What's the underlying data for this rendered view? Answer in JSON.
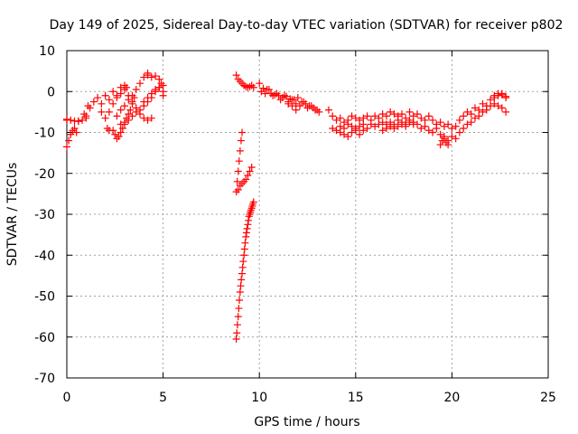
{
  "chart_data": {
    "type": "scatter",
    "title": "Day 149 of 2025, Sidereal Day-to-day VTEC variation (SDTVAR) for receiver p802",
    "xlabel": "GPS time / hours",
    "ylabel": "SDTVAR / TECUs",
    "xlim": [
      0,
      25
    ],
    "ylim": [
      -70,
      10
    ],
    "xticks": [
      0,
      5,
      10,
      15,
      20,
      25
    ],
    "xtick_labels": [
      "0",
      "5",
      "10",
      "15",
      "20",
      "25"
    ],
    "yticks": [
      10,
      0,
      -10,
      -20,
      -30,
      -40,
      -50,
      -60,
      -70
    ],
    "ytick_labels": [
      "10",
      "0",
      "-10",
      "-20",
      "-30",
      "-40",
      "-50",
      "-60",
      "-70"
    ],
    "grid": true,
    "marker": "+",
    "color": "#ff0000",
    "segments": [
      {
        "x": [
          0.0,
          0.0,
          0.1,
          0.2,
          0.3,
          0.4,
          0.5,
          0.6
        ],
        "y": [
          -7.0,
          -13.5,
          -12.0,
          -10.5,
          -9.5,
          -9.0,
          -10.0,
          -7.2
        ]
      },
      {
        "x": [
          0.0,
          0.2,
          0.4,
          0.6,
          0.8,
          1.0
        ],
        "y": [
          -6.8,
          -7.0,
          -7.2,
          -7.3,
          -7.0,
          -6.5
        ]
      },
      {
        "x": [
          0.9,
          1.0,
          1.1,
          1.2,
          1.4,
          1.6,
          1.8,
          2.0,
          2.2,
          2.4,
          2.6,
          2.8,
          3.0
        ],
        "y": [
          -5.5,
          -6.0,
          -3.5,
          -4.0,
          -2.5,
          -1.5,
          -3.0,
          -1.0,
          -2.0,
          0.0,
          -1.0,
          1.0,
          1.5
        ]
      },
      {
        "x": [
          1.8,
          2.0,
          2.2,
          2.4,
          2.6,
          2.8,
          3.0,
          3.1
        ],
        "y": [
          -5.0,
          -6.5,
          -5.0,
          -3.0,
          -1.5,
          -0.5,
          0.5,
          1.0
        ]
      },
      {
        "x": [
          2.1,
          2.2
        ],
        "y": [
          -9.0,
          -9.5
        ]
      },
      {
        "x": [
          2.4,
          2.5,
          2.6,
          2.7,
          2.8,
          2.9,
          3.0,
          3.1,
          3.2,
          3.3,
          3.4,
          3.5
        ],
        "y": [
          -9.5,
          -10.5,
          -11.5,
          -11.0,
          -10.0,
          -9.0,
          -8.0,
          -6.5,
          -5.5,
          -4.5,
          -3.0,
          -1.5
        ]
      },
      {
        "x": [
          2.6,
          2.8,
          3.0,
          3.2,
          3.4,
          3.6,
          3.8,
          4.0,
          4.2
        ],
        "y": [
          -6.0,
          -4.5,
          -3.5,
          -2.0,
          -1.0,
          0.5,
          2.0,
          3.5,
          4.5
        ]
      },
      {
        "x": [
          2.8,
          3.0,
          3.2,
          3.4,
          3.6,
          3.8,
          4.0,
          4.2,
          4.4,
          4.6,
          4.8,
          5.0
        ],
        "y": [
          -8.0,
          -7.5,
          -7.0,
          -6.0,
          -5.0,
          -4.5,
          -3.5,
          -2.5,
          -1.5,
          0.0,
          1.0,
          1.5
        ]
      },
      {
        "x": [
          3.2,
          3.4,
          3.6,
          3.8,
          4.0,
          4.2,
          4.4
        ],
        "y": [
          -1.0,
          -2.5,
          -4.0,
          -5.5,
          -6.5,
          -7.0,
          -6.5
        ]
      },
      {
        "x": [
          4.0,
          4.2,
          4.4,
          4.6,
          4.8,
          5.0,
          5.0
        ],
        "y": [
          -2.5,
          -1.5,
          -0.5,
          0.5,
          1.0,
          0.0,
          -1.0
        ]
      },
      {
        "x": [
          4.2,
          4.4,
          4.6,
          4.8,
          4.9
        ],
        "y": [
          4.0,
          3.5,
          3.8,
          3.0,
          2.0
        ]
      },
      {
        "x": [
          8.8,
          8.9,
          9.0,
          9.1,
          9.2,
          9.3,
          9.4,
          9.5,
          9.6,
          9.7
        ],
        "y": [
          4.0,
          3.0,
          2.5,
          2.0,
          1.5,
          1.2,
          1.0,
          1.2,
          1.5,
          1.0
        ]
      },
      {
        "x": [
          8.8,
          8.85,
          8.9,
          8.95,
          9.0,
          9.05,
          9.1
        ],
        "y": [
          -24.5,
          -22.0,
          -19.5,
          -17.0,
          -14.5,
          -12.0,
          -10.0
        ]
      },
      {
        "x": [
          8.9,
          9.0,
          9.1,
          9.2,
          9.3,
          9.4,
          9.5,
          9.6
        ],
        "y": [
          -24.0,
          -23.0,
          -22.5,
          -22.0,
          -21.5,
          -20.5,
          -19.5,
          -18.5
        ]
      },
      {
        "x": [
          8.8,
          8.83,
          8.86,
          8.9,
          8.93,
          8.96,
          9.0,
          9.03,
          9.06,
          9.1,
          9.13,
          9.16,
          9.2,
          9.23,
          9.26,
          9.3,
          9.33,
          9.36,
          9.4,
          9.43,
          9.46,
          9.5,
          9.53,
          9.56,
          9.6,
          9.63,
          9.66,
          9.7
        ],
        "y": [
          -60.5,
          -59.0,
          -57.0,
          -55.0,
          -53.0,
          -51.0,
          -49.0,
          -47.5,
          -46.0,
          -44.5,
          -43.0,
          -41.5,
          -40.0,
          -38.5,
          -37.0,
          -35.5,
          -34.5,
          -33.5,
          -32.5,
          -31.5,
          -30.5,
          -30.0,
          -29.5,
          -29.0,
          -28.5,
          -28.0,
          -27.5,
          -27.0
        ]
      },
      {
        "x": [
          10.0,
          10.2,
          10.4,
          10.6,
          10.8,
          11.0,
          11.2,
          11.4,
          11.6,
          11.8,
          12.0,
          12.2,
          12.4,
          12.6,
          12.8,
          13.0
        ],
        "y": [
          2.0,
          0.8,
          0.5,
          -0.5,
          -0.8,
          -1.0,
          -1.5,
          -1.2,
          -1.8,
          -2.0,
          -1.5,
          -2.5,
          -3.0,
          -3.5,
          -4.0,
          -4.5
        ]
      },
      {
        "x": [
          10.1,
          10.3,
          10.5,
          10.7,
          10.9,
          11.1,
          11.3,
          11.5,
          11.7,
          11.9,
          12.1,
          12.3,
          12.5,
          12.7,
          12.9,
          13.1
        ],
        "y": [
          0.0,
          -0.5,
          0.5,
          -1.0,
          -0.5,
          -2.0,
          -1.0,
          -2.5,
          -2.0,
          -3.0,
          -3.5,
          -2.5,
          -4.0,
          -3.5,
          -4.5,
          -5.0
        ]
      },
      {
        "x": [
          11.5,
          11.7,
          11.9
        ],
        "y": [
          -3.0,
          -3.5,
          -4.5
        ]
      },
      {
        "x": [
          13.6,
          13.8,
          14.0,
          14.2,
          14.4,
          14.6,
          14.8,
          15.0,
          15.2,
          15.4,
          15.6,
          15.8,
          16.0,
          16.2,
          16.4,
          16.6,
          16.8,
          17.0,
          17.2,
          17.4,
          17.6,
          17.8,
          18.0,
          18.2,
          18.4,
          18.6,
          18.8,
          19.0,
          19.2,
          19.4,
          19.6,
          19.8,
          20.0,
          20.2,
          20.4,
          20.6,
          20.8,
          21.0,
          21.2,
          21.4,
          21.6,
          21.8,
          22.0,
          22.2,
          22.4,
          22.6,
          22.8
        ],
        "y": [
          -4.5,
          -6.0,
          -7.0,
          -6.5,
          -7.5,
          -7.0,
          -6.0,
          -6.5,
          -7.0,
          -6.5,
          -6.0,
          -7.0,
          -6.0,
          -6.5,
          -5.5,
          -6.0,
          -5.0,
          -5.5,
          -6.0,
          -5.5,
          -6.5,
          -5.0,
          -6.0,
          -5.5,
          -6.5,
          -7.0,
          -6.0,
          -7.0,
          -8.0,
          -7.5,
          -8.5,
          -8.0,
          -9.0,
          -8.5,
          -7.0,
          -6.0,
          -5.0,
          -5.5,
          -4.0,
          -4.5,
          -3.0,
          -3.5,
          -2.0,
          -1.5,
          -1.0,
          -0.5,
          -1.5
        ]
      },
      {
        "x": [
          13.8,
          14.0,
          14.2,
          14.4,
          14.6,
          14.8,
          15.0,
          15.2,
          15.4,
          15.6,
          15.8,
          16.0,
          16.2,
          16.4,
          16.6,
          16.8,
          17.0,
          17.2,
          17.4,
          17.6,
          17.8,
          18.0,
          18.2,
          18.4,
          18.6,
          18.8,
          19.0,
          19.2,
          19.4,
          19.6,
          19.8,
          20.0,
          20.2,
          20.4,
          20.6,
          20.8,
          21.0,
          21.2,
          21.4,
          21.6,
          21.8,
          22.0,
          22.2,
          22.4,
          22.6,
          22.8
        ],
        "y": [
          -9.0,
          -9.5,
          -8.5,
          -9.0,
          -8.0,
          -8.5,
          -9.0,
          -8.5,
          -8.0,
          -9.0,
          -8.0,
          -8.5,
          -8.0,
          -7.5,
          -8.0,
          -7.5,
          -8.0,
          -7.0,
          -7.5,
          -8.0,
          -7.0,
          -7.5,
          -8.0,
          -9.0,
          -8.5,
          -9.5,
          -10.0,
          -9.0,
          -10.5,
          -11.5,
          -12.0,
          -11.0,
          -11.5,
          -10.0,
          -9.0,
          -8.0,
          -7.5,
          -6.5,
          -6.0,
          -5.0,
          -4.5,
          -3.5,
          -3.0,
          -3.5,
          -4.0,
          -5.0
        ]
      },
      {
        "x": [
          14.2,
          14.4,
          14.6,
          14.8,
          15.0,
          15.2,
          15.4
        ],
        "y": [
          -10.0,
          -10.5,
          -11.0,
          -10.0,
          -9.5,
          -10.5,
          -9.5
        ]
      },
      {
        "x": [
          16.4,
          16.6,
          16.8,
          17.0,
          17.2,
          17.4,
          17.6,
          17.8,
          18.0
        ],
        "y": [
          -9.5,
          -9.0,
          -8.5,
          -9.0,
          -8.5,
          -8.0,
          -8.5,
          -7.5,
          -8.0
        ]
      },
      {
        "x": [
          19.4,
          19.5,
          19.6,
          19.7,
          19.8
        ],
        "y": [
          -13.0,
          -12.0,
          -11.0,
          -12.5,
          -13.0
        ]
      },
      {
        "x": [
          22.2,
          22.4,
          22.6,
          22.8
        ],
        "y": [
          -1.0,
          -0.5,
          -0.8,
          -1.2
        ]
      }
    ]
  }
}
